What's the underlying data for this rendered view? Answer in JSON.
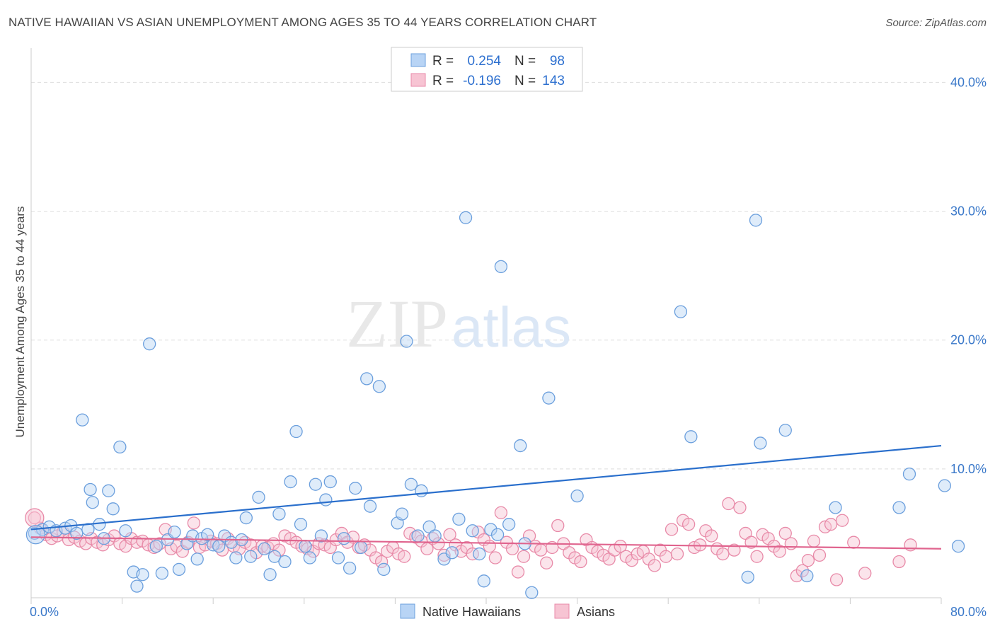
{
  "header": {
    "title": "NATIVE HAWAIIAN VS ASIAN UNEMPLOYMENT AMONG AGES 35 TO 44 YEARS CORRELATION CHART",
    "source": "Source: ZipAtlas.com"
  },
  "watermark": {
    "zip": "ZIP",
    "atlas": "atlas"
  },
  "chart_data": {
    "type": "scatter",
    "ylabel": "Unemployment Among Ages 35 to 44 years",
    "xlim": [
      0,
      80
    ],
    "ylim": [
      0,
      42
    ],
    "x_tick_labels": [
      {
        "value": 0,
        "label": "0.0%"
      },
      {
        "value": 80,
        "label": "80.0%"
      }
    ],
    "y_tick_labels": [
      {
        "value": 10,
        "label": "10.0%"
      },
      {
        "value": 20,
        "label": "20.0%"
      },
      {
        "value": 30,
        "label": "30.0%"
      },
      {
        "value": 40,
        "label": "40.0%"
      }
    ],
    "legend": {
      "position": "top-center",
      "rows": [
        {
          "r_label": "R =",
          "r_value": "0.254",
          "n_label": "N =",
          "n_value": "98"
        },
        {
          "r_label": "R =",
          "r_value": "-0.196",
          "n_label": "N =",
          "n_value": "143"
        }
      ]
    },
    "colors": {
      "native_fill": "#b8d4f5",
      "native_stroke": "#6b9fdd",
      "native_line": "#2a6fcc",
      "asian_fill": "#f7c4d3",
      "asian_stroke": "#e88aa8",
      "asian_line": "#e0648e",
      "grid": "#dddddd",
      "tick": "#3a78c9"
    },
    "series": [
      {
        "name": "Native Hawaiians",
        "trend": [
          [
            0,
            5.3
          ],
          [
            80,
            11.8
          ]
        ],
        "points": [
          [
            0.3,
            5.0
          ],
          [
            1,
            5.3
          ],
          [
            1.6,
            5.5
          ],
          [
            2.2,
            5.2
          ],
          [
            3,
            5.4
          ],
          [
            3.5,
            5.6
          ],
          [
            4,
            5.0
          ],
          [
            5,
            5.3
          ],
          [
            5.4,
            7.4
          ],
          [
            6,
            5.7
          ],
          [
            4.5,
            13.8
          ],
          [
            5.2,
            8.4
          ],
          [
            6.4,
            4.6
          ],
          [
            6.8,
            8.3
          ],
          [
            7.2,
            6.9
          ],
          [
            7.8,
            11.7
          ],
          [
            8.3,
            5.2
          ],
          [
            9,
            2.0
          ],
          [
            9.3,
            0.9
          ],
          [
            9.8,
            1.8
          ],
          [
            10.4,
            19.7
          ],
          [
            11,
            4.0
          ],
          [
            11.5,
            1.9
          ],
          [
            12,
            4.5
          ],
          [
            12.6,
            5.1
          ],
          [
            13,
            2.2
          ],
          [
            13.7,
            4.2
          ],
          [
            14.2,
            4.8
          ],
          [
            14.6,
            3.0
          ],
          [
            15,
            4.6
          ],
          [
            15.5,
            4.9
          ],
          [
            16,
            4.1
          ],
          [
            16.5,
            4.0
          ],
          [
            17,
            4.8
          ],
          [
            17.6,
            4.3
          ],
          [
            18,
            3.1
          ],
          [
            18.5,
            4.5
          ],
          [
            18.9,
            6.2
          ],
          [
            19.3,
            3.2
          ],
          [
            20,
            7.8
          ],
          [
            20.5,
            3.8
          ],
          [
            21,
            1.8
          ],
          [
            21.4,
            3.2
          ],
          [
            21.8,
            6.5
          ],
          [
            22.3,
            2.8
          ],
          [
            22.8,
            9.0
          ],
          [
            23.3,
            12.9
          ],
          [
            23.7,
            5.7
          ],
          [
            24.1,
            4.0
          ],
          [
            24.5,
            3.1
          ],
          [
            25,
            8.8
          ],
          [
            25.5,
            4.8
          ],
          [
            25.9,
            7.6
          ],
          [
            26.3,
            9.0
          ],
          [
            27,
            3.1
          ],
          [
            27.5,
            4.6
          ],
          [
            28,
            2.3
          ],
          [
            28.5,
            8.5
          ],
          [
            29,
            3.9
          ],
          [
            29.5,
            17.0
          ],
          [
            29.8,
            7.1
          ],
          [
            30.6,
            16.4
          ],
          [
            31,
            2.2
          ],
          [
            32.2,
            5.8
          ],
          [
            32.6,
            6.5
          ],
          [
            33,
            19.9
          ],
          [
            33.4,
            8.8
          ],
          [
            34,
            4.8
          ],
          [
            34.3,
            8.3
          ],
          [
            35,
            5.5
          ],
          [
            35.5,
            4.8
          ],
          [
            36.3,
            3.0
          ],
          [
            37,
            3.5
          ],
          [
            37.6,
            6.1
          ],
          [
            38.2,
            29.5
          ],
          [
            38.8,
            5.2
          ],
          [
            39.4,
            3.4
          ],
          [
            39.8,
            1.3
          ],
          [
            40.4,
            5.3
          ],
          [
            41,
            4.9
          ],
          [
            41.3,
            25.7
          ],
          [
            42,
            5.7
          ],
          [
            43,
            11.8
          ],
          [
            43.4,
            4.2
          ],
          [
            44,
            0.4
          ],
          [
            45.5,
            15.5
          ],
          [
            48,
            7.9
          ],
          [
            57.1,
            22.2
          ],
          [
            58,
            12.5
          ],
          [
            63,
            1.6
          ],
          [
            63.7,
            29.3
          ],
          [
            64.1,
            12.0
          ],
          [
            66.3,
            13.0
          ],
          [
            68.2,
            1.7
          ],
          [
            70.7,
            7.0
          ],
          [
            76.3,
            7.0
          ],
          [
            77.2,
            9.6
          ],
          [
            80.3,
            8.7
          ],
          [
            81.5,
            4.0
          ]
        ]
      },
      {
        "name": "Asians",
        "trend": [
          [
            0,
            4.7
          ],
          [
            80,
            3.8
          ]
        ],
        "points": [
          [
            0.3,
            6.2
          ],
          [
            0.8,
            5.4
          ],
          [
            1.3,
            4.9
          ],
          [
            1.8,
            4.6
          ],
          [
            2.3,
            4.8
          ],
          [
            2.8,
            5.1
          ],
          [
            3.3,
            4.5
          ],
          [
            3.8,
            4.7
          ],
          [
            4.3,
            4.4
          ],
          [
            4.8,
            4.2
          ],
          [
            5.3,
            4.6
          ],
          [
            5.8,
            4.3
          ],
          [
            6.3,
            4.1
          ],
          [
            6.8,
            4.5
          ],
          [
            7.3,
            4.8
          ],
          [
            7.8,
            4.2
          ],
          [
            8.3,
            4.0
          ],
          [
            8.8,
            4.6
          ],
          [
            9.3,
            4.3
          ],
          [
            9.8,
            4.4
          ],
          [
            10.3,
            4.1
          ],
          [
            10.8,
            3.9
          ],
          [
            11.3,
            4.2
          ],
          [
            11.8,
            5.3
          ],
          [
            12.3,
            3.8
          ],
          [
            12.8,
            4.0
          ],
          [
            13.3,
            3.6
          ],
          [
            13.8,
            4.3
          ],
          [
            14.3,
            5.8
          ],
          [
            14.8,
            3.9
          ],
          [
            15.3,
            4.1
          ],
          [
            15.8,
            4.4
          ],
          [
            16.3,
            4.2
          ],
          [
            16.8,
            3.7
          ],
          [
            17.3,
            4.6
          ],
          [
            17.8,
            4.0
          ],
          [
            18.3,
            3.8
          ],
          [
            18.8,
            4.3
          ],
          [
            19.3,
            4.1
          ],
          [
            19.8,
            3.5
          ],
          [
            20.3,
            4.0
          ],
          [
            20.8,
            3.9
          ],
          [
            21.3,
            4.2
          ],
          [
            21.8,
            3.7
          ],
          [
            22.3,
            4.8
          ],
          [
            22.8,
            4.6
          ],
          [
            23.3,
            4.3
          ],
          [
            23.8,
            4.0
          ],
          [
            24.3,
            3.8
          ],
          [
            24.8,
            3.6
          ],
          [
            25.3,
            4.2
          ],
          [
            25.8,
            4.1
          ],
          [
            26.3,
            3.9
          ],
          [
            26.8,
            4.5
          ],
          [
            27.3,
            5.0
          ],
          [
            27.8,
            4.3
          ],
          [
            28.3,
            4.7
          ],
          [
            28.8,
            3.9
          ],
          [
            29.3,
            4.1
          ],
          [
            29.8,
            3.7
          ],
          [
            30.3,
            3.1
          ],
          [
            30.8,
            2.8
          ],
          [
            31.3,
            3.6
          ],
          [
            31.8,
            3.9
          ],
          [
            32.3,
            3.4
          ],
          [
            32.8,
            3.2
          ],
          [
            33.3,
            5.0
          ],
          [
            33.8,
            4.7
          ],
          [
            34.3,
            4.4
          ],
          [
            34.8,
            3.8
          ],
          [
            35.3,
            4.6
          ],
          [
            35.8,
            4.2
          ],
          [
            36.3,
            3.3
          ],
          [
            36.8,
            4.9
          ],
          [
            37.3,
            4.1
          ],
          [
            37.8,
            3.6
          ],
          [
            38.3,
            3.9
          ],
          [
            38.8,
            3.4
          ],
          [
            39.3,
            5.1
          ],
          [
            39.8,
            4.5
          ],
          [
            40.3,
            4.0
          ],
          [
            40.8,
            3.1
          ],
          [
            41.3,
            6.6
          ],
          [
            41.8,
            4.3
          ],
          [
            42.3,
            3.8
          ],
          [
            42.8,
            2.0
          ],
          [
            43.3,
            3.2
          ],
          [
            43.8,
            4.8
          ],
          [
            44.3,
            4.0
          ],
          [
            44.8,
            3.7
          ],
          [
            45.3,
            2.7
          ],
          [
            45.8,
            3.9
          ],
          [
            46.3,
            5.6
          ],
          [
            46.8,
            4.2
          ],
          [
            47.3,
            3.5
          ],
          [
            47.8,
            3.1
          ],
          [
            48.3,
            2.8
          ],
          [
            48.8,
            4.5
          ],
          [
            49.3,
            3.9
          ],
          [
            49.8,
            3.6
          ],
          [
            50.3,
            3.3
          ],
          [
            50.8,
            3.0
          ],
          [
            51.3,
            3.7
          ],
          [
            51.8,
            4.0
          ],
          [
            52.3,
            3.2
          ],
          [
            52.8,
            2.9
          ],
          [
            53.3,
            3.4
          ],
          [
            53.8,
            3.6
          ],
          [
            54.3,
            3.0
          ],
          [
            54.8,
            2.5
          ],
          [
            55.3,
            3.7
          ],
          [
            55.8,
            3.2
          ],
          [
            56.3,
            5.3
          ],
          [
            56.8,
            3.4
          ],
          [
            57.3,
            6.0
          ],
          [
            57.8,
            5.7
          ],
          [
            58.3,
            3.9
          ],
          [
            58.8,
            4.1
          ],
          [
            59.3,
            5.2
          ],
          [
            59.8,
            4.8
          ],
          [
            60.3,
            3.8
          ],
          [
            60.8,
            3.4
          ],
          [
            61.3,
            7.3
          ],
          [
            61.8,
            3.7
          ],
          [
            62.3,
            7.0
          ],
          [
            62.8,
            5.0
          ],
          [
            63.3,
            4.3
          ],
          [
            63.8,
            3.2
          ],
          [
            64.3,
            4.9
          ],
          [
            64.8,
            4.6
          ],
          [
            65.3,
            4.0
          ],
          [
            65.8,
            3.6
          ],
          [
            66.3,
            5.0
          ],
          [
            66.8,
            4.2
          ],
          [
            67.3,
            1.7
          ],
          [
            67.8,
            2.1
          ],
          [
            68.3,
            2.9
          ],
          [
            68.8,
            4.4
          ],
          [
            69.3,
            3.3
          ],
          [
            69.8,
            5.5
          ],
          [
            70.3,
            5.7
          ],
          [
            70.8,
            1.4
          ],
          [
            71.3,
            6.0
          ],
          [
            72.3,
            4.3
          ],
          [
            73.3,
            1.9
          ],
          [
            76.3,
            2.8
          ],
          [
            77.3,
            4.1
          ]
        ]
      }
    ],
    "big_markers": [
      {
        "series": "Native Hawaiians",
        "x": 0.4,
        "y": 4.9
      },
      {
        "series": "Asians",
        "x": 0.3,
        "y": 6.2
      }
    ]
  }
}
